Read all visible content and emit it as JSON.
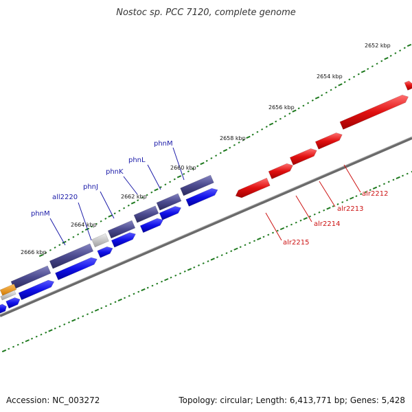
{
  "title": "Nostoc sp. PCC 7120, complete genome",
  "colors": {
    "backbone": "#7a7a7a",
    "tick": "#1f7a1f",
    "fwd_outer": "#4b4a8e",
    "fwd_inner": "#1010e8",
    "grey": "#c8c8c8",
    "orange": "#f0a020",
    "rev": "#e01010",
    "fwd_label": "#1a1aa8",
    "rev_label": "#cc1111"
  },
  "kbp_labels": [
    "2652 kbp",
    "2654 kbp",
    "2656 kbp",
    "2658 kbp",
    "2660 kbp",
    "2662 kbp",
    "2664 kbp",
    "2666 kbp"
  ],
  "forward_labels": [
    "phnM",
    "phnL",
    "phnK",
    "phnJ",
    "all2220",
    "phnM"
  ],
  "reverse_labels": [
    "alr2212",
    "alr2213",
    "alr2214",
    "alr2215"
  ],
  "footer": {
    "accession": "Accession: NC_003272",
    "meta": "Topology: circular; Length: 6,413,771 bp; Genes: 5,428"
  }
}
